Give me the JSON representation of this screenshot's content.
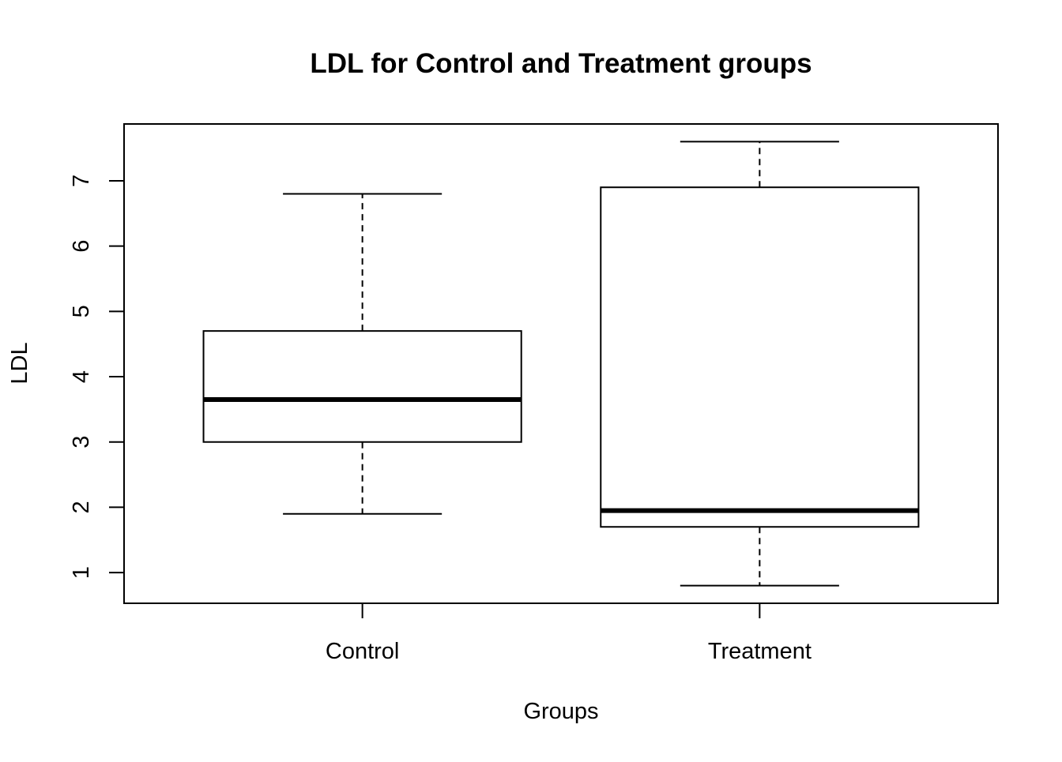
{
  "chart_data": {
    "type": "boxplot",
    "title": "LDL for Control and Treatment groups",
    "xlabel": "Groups",
    "ylabel": "LDL",
    "categories": [
      "Control",
      "Treatment"
    ],
    "y_ticks": [
      1,
      2,
      3,
      4,
      5,
      6,
      7
    ],
    "ylim": [
      0.53,
      7.87
    ],
    "grid": false,
    "legend": "none",
    "boxes": [
      {
        "group": "Control",
        "whisker_low": 1.9,
        "q1": 3.0,
        "median": 3.65,
        "q3": 4.7,
        "whisker_high": 6.8
      },
      {
        "group": "Treatment",
        "whisker_low": 0.8,
        "q1": 1.7,
        "median": 1.95,
        "q3": 6.9,
        "whisker_high": 7.6
      }
    ]
  }
}
